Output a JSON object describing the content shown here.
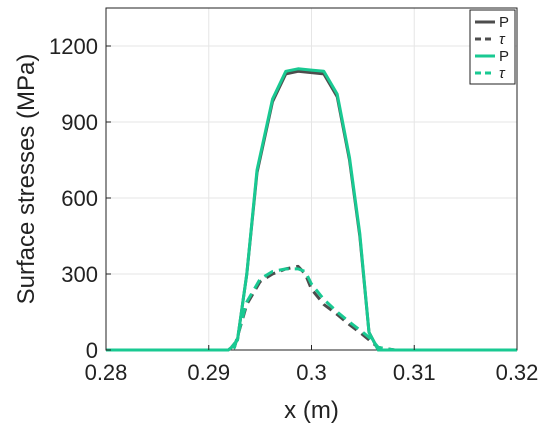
{
  "chart_data": {
    "type": "line",
    "title": "",
    "xlabel": "x (m)",
    "ylabel": "Surface stresses (MPa)",
    "xlim": [
      0.28,
      0.32
    ],
    "ylim": [
      0,
      1350
    ],
    "xticks": [
      0.28,
      0.29,
      0.3,
      0.31,
      0.32
    ],
    "xtick_labels": [
      "0.28",
      "0.29",
      "0.3",
      "0.31",
      "0.32"
    ],
    "yticks": [
      0,
      300,
      600,
      900,
      1200
    ],
    "ytick_labels": [
      "0",
      "300",
      "600",
      "900",
      "1200"
    ],
    "grid": true,
    "legend_position": "top-right",
    "series": [
      {
        "name": "P",
        "color": "#4d4d4d",
        "dash": "solid",
        "x": [
          0.28,
          0.2919,
          0.2922,
          0.2928,
          0.2937,
          0.2947,
          0.2962,
          0.2975,
          0.2987,
          0.3,
          0.3012,
          0.3025,
          0.3037,
          0.3047,
          0.3056,
          0.3065,
          0.3075,
          0.3081,
          0.32
        ],
        "y": [
          0,
          0,
          10,
          40,
          300,
          700,
          980,
          1090,
          1100,
          1095,
          1090,
          1000,
          750,
          450,
          70,
          0,
          0,
          0,
          0
        ]
      },
      {
        "name": "τ",
        "color": "#4d4d4d",
        "dash": "dashed",
        "x": [
          0.28,
          0.2922,
          0.2925,
          0.2937,
          0.295,
          0.2962,
          0.2975,
          0.2987,
          0.2994,
          0.3,
          0.3012,
          0.3025,
          0.3037,
          0.305,
          0.3059,
          0.3065,
          0.3081,
          0.32
        ],
        "y": [
          0,
          0,
          10,
          180,
          270,
          300,
          320,
          330,
          300,
          240,
          180,
          140,
          100,
          60,
          30,
          10,
          0,
          0
        ]
      },
      {
        "name": "P",
        "color": "#19c992",
        "dash": "solid",
        "x": [
          0.28,
          0.2919,
          0.2922,
          0.2928,
          0.2937,
          0.2947,
          0.2962,
          0.2975,
          0.2987,
          0.3,
          0.3012,
          0.3025,
          0.3037,
          0.3047,
          0.3056,
          0.3065,
          0.3075,
          0.3081,
          0.32
        ],
        "y": [
          0,
          0,
          10,
          40,
          300,
          710,
          990,
          1100,
          1110,
          1105,
          1100,
          1010,
          760,
          460,
          70,
          0,
          0,
          0,
          0
        ]
      },
      {
        "name": "τ",
        "color": "#19c992",
        "dash": "dashed",
        "x": [
          0.28,
          0.2922,
          0.2925,
          0.2937,
          0.295,
          0.2962,
          0.2975,
          0.2987,
          0.2994,
          0.3,
          0.3012,
          0.3025,
          0.3037,
          0.305,
          0.3059,
          0.3065,
          0.3081,
          0.32
        ],
        "y": [
          0,
          0,
          10,
          190,
          280,
          310,
          320,
          320,
          310,
          260,
          200,
          150,
          110,
          70,
          40,
          10,
          0,
          0
        ]
      }
    ]
  }
}
